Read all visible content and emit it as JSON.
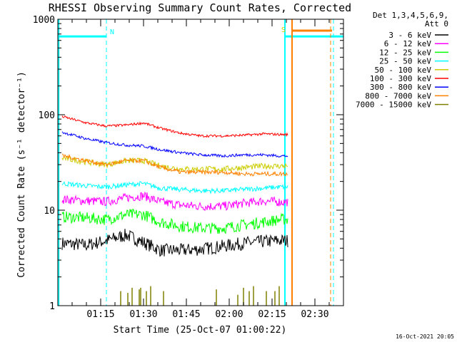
{
  "chart_data": {
    "type": "line",
    "title": "RHESSI Observing Summary Count Rates, Corrected",
    "xlabel": "Start Time (25-Oct-07 01:00:22)",
    "ylabel": "Corrected Count Rate (s⁻¹ detector⁻¹)",
    "yscale": "log",
    "ylim": [
      1,
      1000
    ],
    "xlim_minutes": [
      0,
      100
    ],
    "x_ticks": [
      "01:15",
      "01:30",
      "01:45",
      "02:00",
      "02:15",
      "02:30"
    ],
    "x_tick_minutes": [
      15,
      30,
      45,
      60,
      75,
      90
    ],
    "y_ticks": [
      "1",
      "10",
      "100",
      "1000"
    ],
    "y_tick_values": [
      1,
      10,
      100,
      1000
    ],
    "legend_header": [
      "Det 1,3,4,5,6,9,",
      "Att 0"
    ],
    "legend_position": "right",
    "x_units": "minutes after 01:00",
    "series": [
      {
        "name": "3 - 6 keV",
        "color": "#000000",
        "x": [
          2,
          10,
          17,
          24,
          30,
          36,
          43,
          50,
          58,
          65,
          72,
          78
        ],
        "values": [
          4.5,
          4.3,
          4.8,
          5.5,
          4.6,
          3.8,
          3.8,
          3.9,
          4.2,
          4.5,
          4.7,
          4.8
        ]
      },
      {
        "name": "6 - 12 keV",
        "color": "#ff00ff",
        "x": [
          2,
          10,
          17,
          24,
          30,
          36,
          43,
          50,
          58,
          65,
          72,
          78
        ],
        "values": [
          13,
          12.5,
          12.3,
          13.5,
          14.2,
          12.2,
          11.3,
          11,
          11,
          11.8,
          12.5,
          12.2
        ]
      },
      {
        "name": "12 - 25 keV",
        "color": "#00ff00",
        "x": [
          2,
          10,
          17,
          24,
          30,
          36,
          43,
          50,
          58,
          65,
          72,
          78
        ],
        "values": [
          8.5,
          8.3,
          8,
          9,
          9,
          7.5,
          6.8,
          6.5,
          6.5,
          7,
          7.5,
          8
        ]
      },
      {
        "name": "25 - 50 keV",
        "color": "#00ffff",
        "x": [
          2,
          10,
          17,
          24,
          30,
          36,
          43,
          50,
          58,
          65,
          72,
          78
        ],
        "values": [
          19,
          18,
          17.5,
          18.5,
          19,
          17,
          16.5,
          16,
          16,
          16.5,
          17,
          17.5
        ]
      },
      {
        "name": "50 - 100 keV",
        "color": "#cccc00",
        "x": [
          2,
          10,
          17,
          24,
          30,
          36,
          43,
          50,
          58,
          65,
          72,
          78
        ],
        "values": [
          35,
          32,
          30,
          33,
          33,
          29,
          27,
          27,
          27,
          28,
          29,
          29
        ]
      },
      {
        "name": "100 - 300 keV",
        "color": "#ff0000",
        "x": [
          2,
          10,
          17,
          24,
          30,
          36,
          43,
          50,
          58,
          65,
          72,
          78
        ],
        "values": [
          95,
          82,
          76,
          78,
          82,
          72,
          64,
          60,
          60,
          61,
          63,
          62
        ]
      },
      {
        "name": "300 - 800 keV",
        "color": "#0000ff",
        "x": [
          2,
          10,
          17,
          24,
          30,
          36,
          43,
          50,
          58,
          65,
          72,
          78
        ],
        "values": [
          65,
          56,
          51,
          48,
          47,
          43,
          40,
          38,
          37,
          38,
          38,
          37
        ]
      },
      {
        "name": "800 - 7000 keV",
        "color": "#ff8000",
        "x": [
          2,
          10,
          17,
          24,
          30,
          36,
          43,
          50,
          58,
          65,
          72,
          78
        ],
        "values": [
          37,
          33,
          30,
          33,
          33,
          28,
          25,
          25,
          25,
          24,
          24,
          24
        ]
      },
      {
        "name": "7000 - 15000 keV",
        "color": "#808000",
        "x": [],
        "values": []
      }
    ],
    "flag_letters": [
      "N",
      "S"
    ],
    "footer_timestamp": "16-Oct-2021 20:05"
  },
  "colors": {
    "background": "#ffffff",
    "axes": "#000000",
    "night_flag": "#00ffff",
    "saa_flag": "#ff8000"
  }
}
